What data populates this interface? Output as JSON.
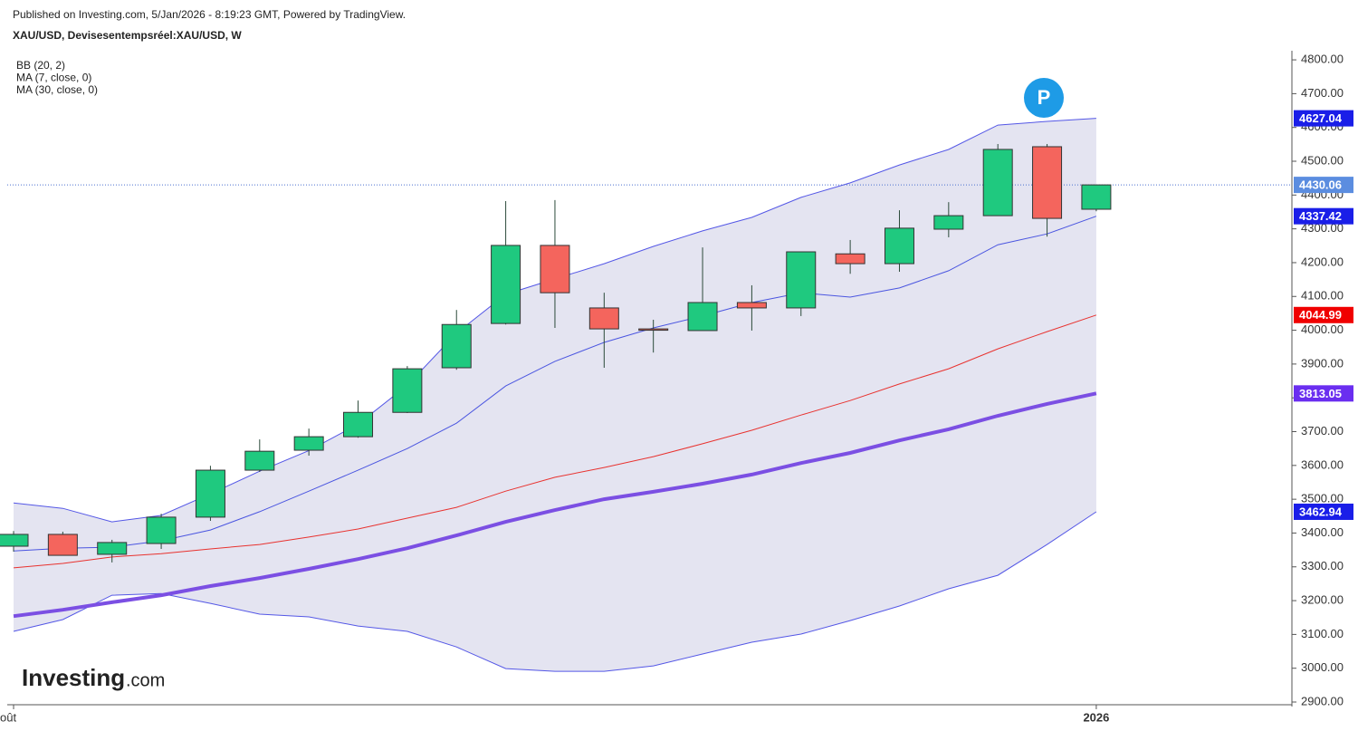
{
  "chart_data": {
    "type": "candlestick",
    "subtitle": "Published on Investing.com, 5/Jan/2026 - 8:19:23 GMT, Powered by TradingView.",
    "title": "XAU/USD, Devisesentempsréel:XAU/USD, W",
    "watermark": {
      "brand": "Investing",
      "suffix": ".com"
    },
    "marker": "P",
    "categories": [
      "oût",
      null,
      null,
      null,
      null,
      null,
      null,
      null,
      null,
      null,
      null,
      null,
      null,
      null,
      null,
      null,
      null,
      null,
      null,
      null,
      null,
      null,
      "2026"
    ],
    "open": [
      3361,
      3396,
      3337,
      3369,
      3447,
      3586,
      3645,
      3685,
      3757,
      3889,
      4020,
      4251,
      4066,
      4004,
      3999,
      4082,
      4066,
      4226,
      4197,
      4299,
      4339,
      4543,
      4358
    ],
    "high": [
      3406,
      3404,
      3380,
      3457,
      3599,
      3677,
      3709,
      3792,
      3894,
      4060,
      4382,
      4385,
      4111,
      4031,
      4245,
      4133,
      4232,
      4267,
      4355,
      4379,
      4551,
      4551,
      4430.06
    ],
    "low": [
      3345,
      3334,
      3313,
      3353,
      3436,
      3581,
      3629,
      3682,
      3755,
      3883,
      4017,
      4007,
      3889,
      3934,
      3999,
      3999,
      4042,
      4167,
      4173,
      4275,
      4339,
      4277,
      4352
    ],
    "close": [
      3396,
      3334,
      3372,
      3447,
      3586,
      3642,
      3685,
      3757,
      3886,
      4017,
      4251,
      4111,
      4004,
      4001,
      4082,
      4066,
      4232,
      4197,
      4302,
      4339,
      4535,
      4331,
      4430.06
    ],
    "up_color": "#1fc97f",
    "down_color": "#f4655d",
    "indicators": [
      {
        "name": "BB (20, 2)",
        "color": "#5457e6",
        "basis_color": "#e8322f",
        "upper": [
          3489,
          3473,
          3433,
          3452,
          3516,
          3583,
          3644,
          3722,
          3837,
          3991,
          4106,
          4152,
          4197,
          4248,
          4294,
          4334,
          4393,
          4436,
          4489,
          4535,
          4607,
          4618,
          4627.04
        ],
        "basis": [
          3297,
          3310,
          3329,
          3339,
          3353,
          3366,
          3388,
          3412,
          3444,
          3476,
          3524,
          3565,
          3594,
          3626,
          3664,
          3704,
          3749,
          3792,
          3841,
          3886,
          3945,
          3996,
          4044.99
        ],
        "lower": [
          3109,
          3144,
          3216,
          3221,
          3192,
          3160,
          3152,
          3125,
          3109,
          3063,
          2999,
          2991,
          2991,
          3007,
          3042,
          3077,
          3101,
          3141,
          3184,
          3235,
          3275,
          3366,
          3462.94
        ]
      },
      {
        "name": "MA (7, close, 0)",
        "color": "#4a55e0",
        "values": [
          3347,
          3355,
          3358,
          3377,
          3409,
          3463,
          3524,
          3586,
          3650,
          3725,
          3835,
          3908,
          3964,
          4007,
          4042,
          4082,
          4111,
          4098,
          4125,
          4176,
          4253,
          4285,
          4337.42
        ]
      },
      {
        "name": "MA (30, close, 0)",
        "color": "#7b4fe3",
        "values": [
          3154,
          3173,
          3195,
          3216,
          3243,
          3267,
          3294,
          3323,
          3355,
          3393,
          3433,
          3468,
          3500,
          3522,
          3546,
          3573,
          3607,
          3637,
          3674,
          3707,
          3747,
          3782,
          3813.05
        ]
      }
    ],
    "price_line_color": "#4a6fd0",
    "ylim": [
      2892,
      4827
    ],
    "yticks": [
      {
        "value": 2900,
        "label": "2900.00"
      },
      {
        "value": 3000,
        "label": "3000.00"
      },
      {
        "value": 3100,
        "label": "3100.00"
      },
      {
        "value": 3200,
        "label": "3200.00"
      },
      {
        "value": 3300,
        "label": "3300.00"
      },
      {
        "value": 3400,
        "label": "3400.00"
      },
      {
        "value": 3500,
        "label": "3500.00"
      },
      {
        "value": 3600,
        "label": "3600.00"
      },
      {
        "value": 3700,
        "label": "3700.00"
      },
      {
        "value": 3800,
        "label": "3800.00"
      },
      {
        "value": 3900,
        "label": "3900.00"
      },
      {
        "value": 4000,
        "label": "4000.00"
      },
      {
        "value": 4100,
        "label": "4100.00"
      },
      {
        "value": 4200,
        "label": "4200.00"
      },
      {
        "value": 4300,
        "label": "4300.00"
      },
      {
        "value": 4400,
        "label": "4400.00"
      },
      {
        "value": 4500,
        "label": "4500.00"
      },
      {
        "value": 4600,
        "label": "4600.00"
      },
      {
        "value": 4700,
        "label": "4700.00"
      },
      {
        "value": 4800,
        "label": "4800.00"
      }
    ],
    "grid": false
  }
}
